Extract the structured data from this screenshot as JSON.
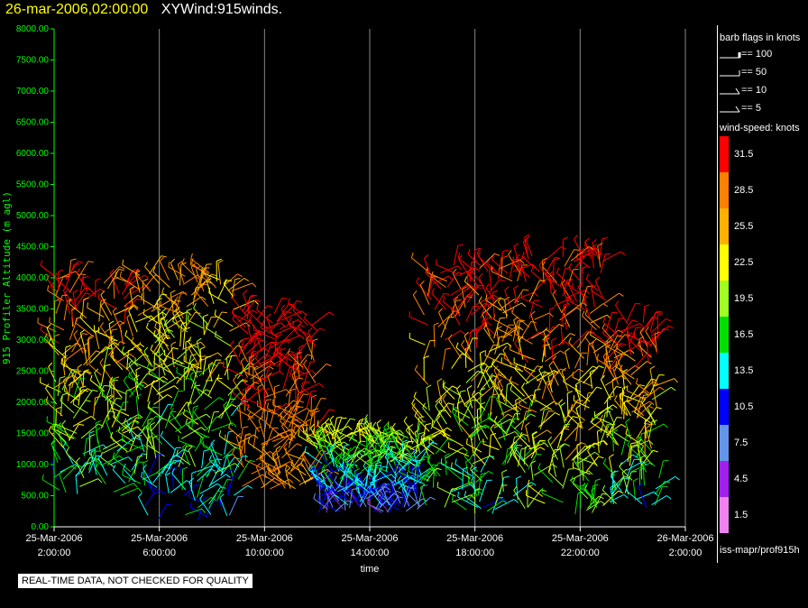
{
  "header": {
    "timestamp": "26-mar-2006,02:00:00",
    "title": "XYWind:915winds."
  },
  "legend": {
    "barb_title": "barb flags in knots",
    "barb_flags": [
      "== 100",
      "== 50",
      "== 10",
      "== 5"
    ],
    "speed_title": "wind-speed: knots",
    "speed_bins": [
      {
        "label": "31.5",
        "color": "#ff0000"
      },
      {
        "label": "28.5",
        "color": "#ff8000"
      },
      {
        "label": "25.5",
        "color": "#ffb000"
      },
      {
        "label": "22.5",
        "color": "#ffff00"
      },
      {
        "label": "19.5",
        "color": "#a0ff20"
      },
      {
        "label": "16.5",
        "color": "#00e000"
      },
      {
        "label": "13.5",
        "color": "#00ffff"
      },
      {
        "label": "10.5",
        "color": "#0000ff"
      },
      {
        "label": "7.5",
        "color": "#6495ed"
      },
      {
        "label": "4.5",
        "color": "#a020f0"
      },
      {
        "label": "1.5",
        "color": "#ee82ee"
      }
    ],
    "source": "iss-mapr/prof915h"
  },
  "footer": {
    "quality_note": "REAL-TIME DATA, NOT CHECKED FOR QUALITY"
  },
  "colors": {
    "axis": "#00ff00",
    "grid": "#888888",
    "title_timestamp": "#ffff00"
  },
  "chart_data": {
    "type": "scatter",
    "title": "XYWind:915winds.",
    "xlabel": "time",
    "ylabel": "915 Profiler Altitude (m agl)",
    "ylim": [
      0,
      8000
    ],
    "yticks": [
      "0.00",
      "500.00",
      "1000.00",
      "1500.00",
      "2000.00",
      "2500.00",
      "3000.00",
      "3500.00",
      "4000.00",
      "4500.00",
      "5000.00",
      "5500.00",
      "6000.00",
      "6500.00",
      "7000.00",
      "7500.00",
      "8000.00"
    ],
    "xlim": [
      "25-Mar-2006 02:00:00",
      "26-Mar-2006 02:00:00"
    ],
    "xticks": [
      {
        "date": "25-Mar-2006",
        "time": "2:00:00"
      },
      {
        "date": "25-Mar-2006",
        "time": "6:00:00"
      },
      {
        "date": "25-Mar-2006",
        "time": "10:00:00"
      },
      {
        "date": "25-Mar-2006",
        "time": "14:00:00"
      },
      {
        "date": "25-Mar-2006",
        "time": "18:00:00"
      },
      {
        "date": "25-Mar-2006",
        "time": "22:00:00"
      },
      {
        "date": "26-Mar-2006",
        "time": "2:00:00"
      }
    ],
    "grid": true,
    "series_summary": [
      {
        "hours": [
          2,
          5
        ],
        "alt_range_m": [
          500,
          4000
        ],
        "speed_range_kt": [
          10,
          31
        ]
      },
      {
        "hours": [
          5,
          9
        ],
        "alt_range_m": [
          100,
          4100
        ],
        "speed_range_kt": [
          8,
          28
        ]
      },
      {
        "hours": [
          9,
          12
        ],
        "alt_range_m": [
          600,
          3500
        ],
        "speed_range_kt": [
          25,
          33
        ]
      },
      {
        "hours": [
          12,
          16
        ],
        "alt_range_m": [
          200,
          1500
        ],
        "speed_range_kt": [
          4,
          22
        ]
      },
      {
        "hours": [
          16,
          20
        ],
        "alt_range_m": [
          200,
          4200
        ],
        "speed_range_kt": [
          10,
          33
        ]
      },
      {
        "hours": [
          20,
          23
        ],
        "alt_range_m": [
          200,
          4400
        ],
        "speed_range_kt": [
          15,
          33
        ]
      },
      {
        "hours": [
          23,
          25
        ],
        "alt_range_m": [
          300,
          3300
        ],
        "speed_range_kt": [
          10,
          33
        ]
      }
    ]
  }
}
